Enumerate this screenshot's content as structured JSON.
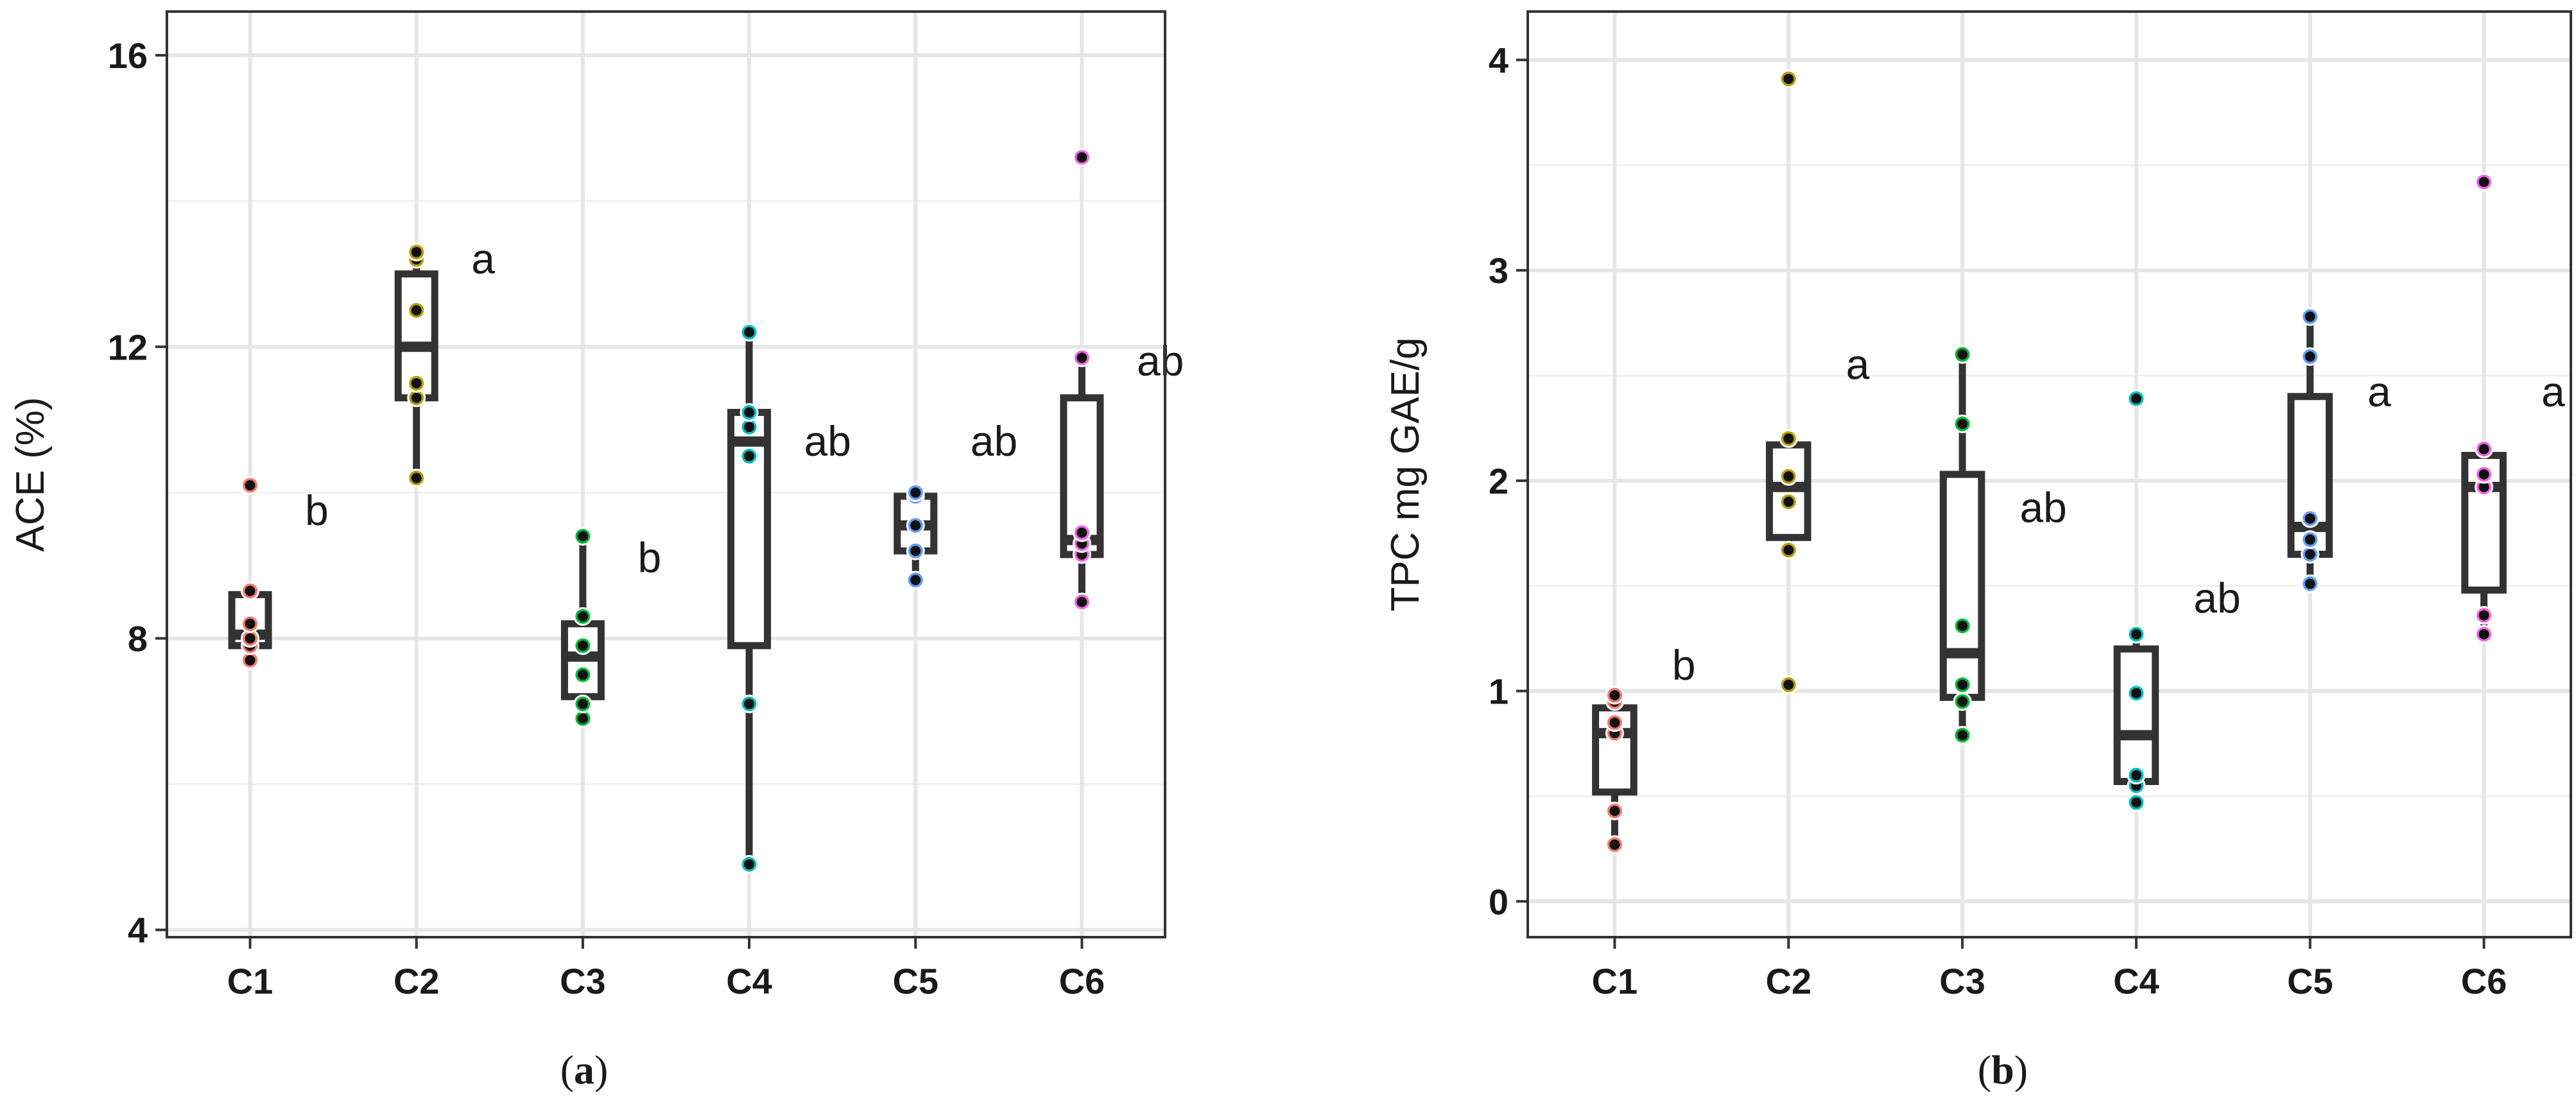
{
  "chart_data": [
    {
      "type": "box",
      "panel_label": "a",
      "xlabel": "",
      "ylabel": "ACE (%)",
      "ylim": [
        3.9,
        16.6
      ],
      "yticks": [
        4,
        8,
        12,
        16
      ],
      "categories": [
        "C1",
        "C2",
        "C3",
        "C4",
        "C5",
        "C6"
      ],
      "series_colors": [
        "#F8766D",
        "#B79F00",
        "#00BA38",
        "#00BFC4",
        "#619CFF",
        "#F564E3"
      ],
      "boxes": [
        {
          "category": "C1",
          "q1": 7.9,
          "median": 8.05,
          "q3": 8.6,
          "whisker_low": 7.7,
          "whisker_high": 8.7,
          "letter": "b",
          "letter_y": 9.75,
          "points": [
            7.7,
            7.9,
            8.0,
            8.2,
            8.65,
            10.1
          ]
        },
        {
          "category": "C2",
          "q1": 11.3,
          "median": 12.0,
          "q3": 13.0,
          "whisker_low": 10.2,
          "whisker_high": 13.3,
          "letter": "a",
          "letter_y": 13.2,
          "points": [
            10.2,
            11.3,
            11.5,
            12.5,
            13.2,
            13.3
          ]
        },
        {
          "category": "C3",
          "q1": 7.2,
          "median": 7.75,
          "q3": 8.2,
          "whisker_low": 6.9,
          "whisker_high": 9.4,
          "letter": "b",
          "letter_y": 9.1,
          "points": [
            6.9,
            7.1,
            7.5,
            7.9,
            8.3,
            9.4
          ]
        },
        {
          "category": "C4",
          "q1": 7.9,
          "median": 10.7,
          "q3": 11.1,
          "whisker_low": 4.9,
          "whisker_high": 12.2,
          "letter": "ab",
          "letter_y": 10.7,
          "points": [
            4.9,
            7.1,
            10.5,
            10.9,
            11.1,
            12.2
          ]
        },
        {
          "category": "C5",
          "q1": 9.2,
          "median": 9.55,
          "q3": 9.95,
          "whisker_low": 8.8,
          "whisker_high": 10.0,
          "letter": "ab",
          "letter_y": 10.7,
          "points": [
            8.8,
            9.2,
            9.55,
            9.95,
            10.0
          ]
        },
        {
          "category": "C6",
          "q1": 9.15,
          "median": 9.35,
          "q3": 11.3,
          "whisker_low": 8.5,
          "whisker_high": 11.85,
          "letter": "ab",
          "letter_y": 11.8,
          "points": [
            8.5,
            9.15,
            9.3,
            9.45,
            11.85,
            14.6
          ]
        }
      ]
    },
    {
      "type": "box",
      "panel_label": "b",
      "xlabel": "",
      "ylabel": "TPC mg GAE/g",
      "ylim": [
        -0.17,
        4.23
      ],
      "yticks": [
        0,
        1,
        2,
        3,
        4
      ],
      "categories": [
        "C1",
        "C2",
        "C3",
        "C4",
        "C5",
        "C6"
      ],
      "series_colors": [
        "#F8766D",
        "#B79F00",
        "#00BA38",
        "#00BFC4",
        "#619CFF",
        "#F564E3"
      ],
      "boxes": [
        {
          "category": "C1",
          "q1": 0.52,
          "median": 0.8,
          "q3": 0.92,
          "whisker_low": 0.27,
          "whisker_high": 0.98,
          "letter": "b",
          "letter_y": 1.12,
          "points": [
            0.27,
            0.43,
            0.8,
            0.85,
            0.95,
            0.98
          ]
        },
        {
          "category": "C2",
          "q1": 1.73,
          "median": 1.97,
          "q3": 2.17,
          "whisker_low": 1.67,
          "whisker_high": 2.2,
          "letter": "a",
          "letter_y": 2.55,
          "points": [
            1.03,
            1.67,
            1.9,
            2.02,
            2.2,
            3.91
          ]
        },
        {
          "category": "C3",
          "q1": 0.97,
          "median": 1.18,
          "q3": 2.03,
          "whisker_low": 0.79,
          "whisker_high": 2.6,
          "letter": "ab",
          "letter_y": 1.87,
          "points": [
            0.79,
            0.95,
            1.03,
            1.31,
            2.27,
            2.6
          ]
        },
        {
          "category": "C4",
          "q1": 0.57,
          "median": 0.79,
          "q3": 1.2,
          "whisker_low": 0.47,
          "whisker_high": 1.27,
          "letter": "ab",
          "letter_y": 1.44,
          "points": [
            0.47,
            0.55,
            0.6,
            0.99,
            1.27,
            2.39
          ]
        },
        {
          "category": "C5",
          "q1": 1.65,
          "median": 1.78,
          "q3": 2.4,
          "whisker_low": 1.51,
          "whisker_high": 2.78,
          "letter": "a",
          "letter_y": 2.42,
          "points": [
            1.51,
            1.65,
            1.72,
            1.82,
            2.59,
            2.78
          ]
        },
        {
          "category": "C6",
          "q1": 1.48,
          "median": 1.97,
          "q3": 2.12,
          "whisker_low": 1.27,
          "whisker_high": 2.15,
          "letter": "a",
          "letter_y": 2.42,
          "points": [
            1.27,
            1.36,
            1.97,
            2.03,
            2.15,
            3.42
          ]
        }
      ]
    }
  ]
}
